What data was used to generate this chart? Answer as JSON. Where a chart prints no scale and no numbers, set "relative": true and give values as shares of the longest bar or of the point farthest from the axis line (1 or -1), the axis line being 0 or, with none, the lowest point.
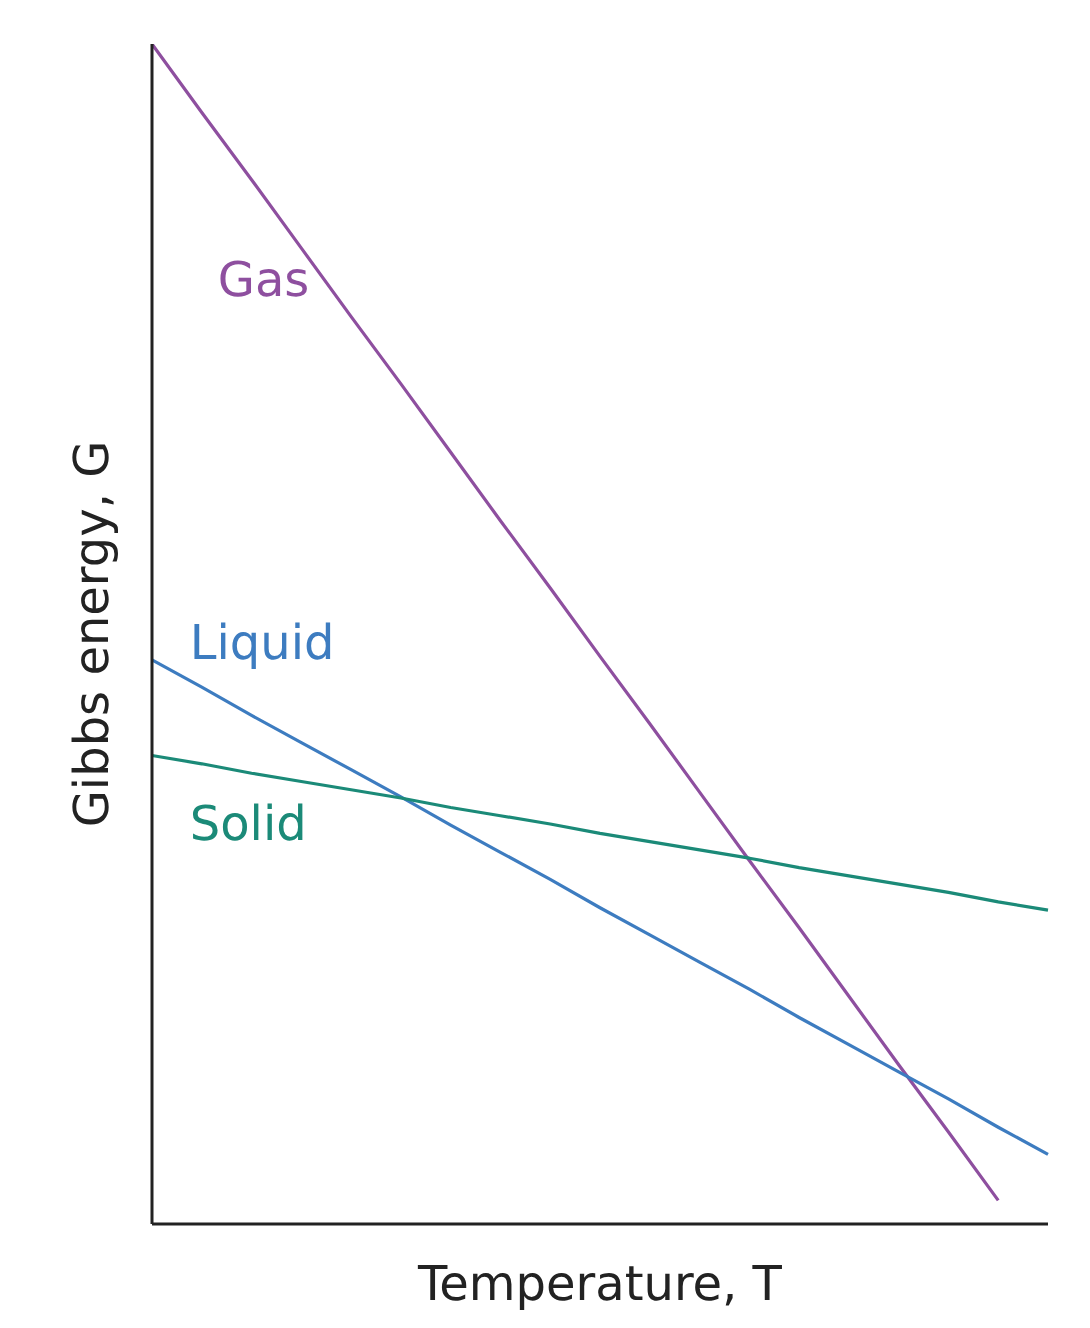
{
  "chart_data": {
    "type": "line",
    "relative": true,
    "xlabel": "Temperature, T",
    "ylabel": "Gibbs energy, G",
    "categories": [
      null,
      null,
      null,
      null,
      null,
      null,
      null,
      null,
      null,
      null,
      null,
      null,
      null,
      null,
      null,
      null,
      null,
      null,
      null
    ],
    "series": [
      {
        "name": "Gas",
        "color": "#8e4f9f",
        "values": [
          1,
          0.942,
          0.885,
          0.827,
          0.769,
          0.712,
          0.654,
          0.596,
          0.539,
          0.481,
          0.424,
          0.366,
          0.308,
          0.251,
          0.193,
          0.135,
          0.078,
          0.02,
          null
        ]
      },
      {
        "name": "Liquid",
        "color": "#3d7cc0",
        "values": [
          0.478,
          0.455,
          0.431,
          0.408,
          0.385,
          0.362,
          0.338,
          0.315,
          0.292,
          0.268,
          0.245,
          0.222,
          0.199,
          0.175,
          0.152,
          0.129,
          0.106,
          0.082,
          0.059
        ]
      },
      {
        "name": "Solid",
        "color": "#1b8a78",
        "values": [
          0.397,
          0.39,
          0.382,
          0.375,
          0.368,
          0.361,
          0.353,
          0.346,
          0.339,
          0.331,
          0.324,
          0.317,
          0.31,
          0.302,
          0.295,
          0.288,
          0.281,
          0.273,
          0.266
        ]
      }
    ],
    "grid": false,
    "legend": false,
    "marker": "none",
    "line_style": "solid"
  }
}
